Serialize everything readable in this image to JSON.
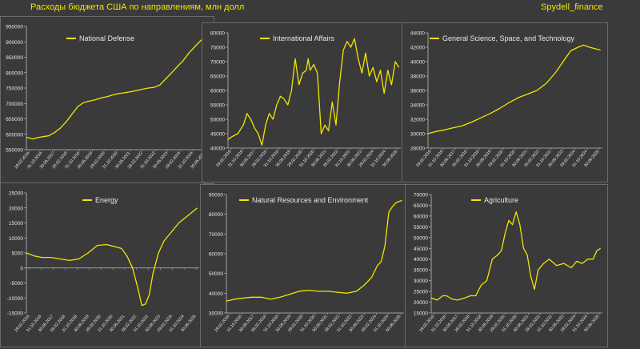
{
  "page": {
    "title": "Расходы бюджета США по направлениям, млн долл",
    "source": "Spydell_finance"
  },
  "colors": {
    "line": "#f2e600",
    "background": "#3a3a3a",
    "text": "#e8e8e8",
    "axis": "#bdbdbd"
  },
  "chart_data": [
    {
      "type": "line",
      "legend": "National Defense",
      "ylim": [
        550000,
        950000
      ],
      "yticks": [
        550000,
        600000,
        650000,
        700000,
        750000,
        800000,
        850000,
        900000,
        950000
      ],
      "ytick_labels": [
        "550000",
        "600000",
        "650000",
        "700000",
        "750000",
        "800000",
        "850000",
        "900000",
        "950000"
      ],
      "xtick_labels": [
        "29.02.2016",
        "31.10.2016",
        "30.06.2017",
        "28.02.2018",
        "31.10.2018",
        "30.06.2019",
        "29.02.2020",
        "31.10.2020",
        "30.06.2021",
        "28.02.2022",
        "31.10.2022",
        "30.06.2023",
        "29.02.2024",
        "31.10.2024",
        "30.06.2025"
      ],
      "x_range": [
        2016.17,
        2025.5
      ],
      "series": [
        {
          "x": [
            2016.17,
            2016.5,
            2016.8,
            2017.0,
            2017.3,
            2017.6,
            2017.9,
            2018.2,
            2018.5,
            2018.8,
            2019.1,
            2019.4,
            2019.7,
            2020.0,
            2020.3,
            2020.6,
            2020.9,
            2021.2,
            2021.5,
            2021.8,
            2022.1,
            2022.4,
            2022.7,
            2023.0,
            2023.3,
            2023.6,
            2023.9,
            2024.2,
            2024.5,
            2024.8,
            2025.1,
            2025.5
          ],
          "y": [
            590000,
            585000,
            590000,
            592000,
            595000,
            605000,
            620000,
            640000,
            665000,
            690000,
            703000,
            708000,
            712000,
            718000,
            722000,
            728000,
            732000,
            735000,
            738000,
            742000,
            746000,
            750000,
            752000,
            760000,
            780000,
            800000,
            820000,
            840000,
            865000,
            885000,
            905000,
            918000
          ]
        }
      ]
    },
    {
      "type": "line",
      "legend": "International Affairs",
      "ylim": [
        40000,
        80000
      ],
      "yticks": [
        40000,
        45000,
        50000,
        55000,
        60000,
        65000,
        70000,
        75000,
        80000
      ],
      "ytick_labels": [
        "40000",
        "45000",
        "50000",
        "55000",
        "60000",
        "65000",
        "70000",
        "75000",
        "80000"
      ],
      "xtick_labels": [
        "29.02.2016",
        "31.10.2016",
        "30.06.2017",
        "28.02.2018",
        "31.10.2018",
        "30.06.2019",
        "29.02.2020",
        "31.10.2020",
        "30.06.2021",
        "28.02.2022",
        "31.10.2022",
        "30.06.2023",
        "29.02.2024",
        "31.10.2024",
        "30.06.2025"
      ],
      "x_range": [
        2016.17,
        2025.5
      ],
      "series": [
        {
          "x": [
            2016.17,
            2016.4,
            2016.7,
            2017.0,
            2017.2,
            2017.4,
            2017.6,
            2017.8,
            2018.0,
            2018.2,
            2018.4,
            2018.6,
            2018.8,
            2019.0,
            2019.2,
            2019.4,
            2019.6,
            2019.8,
            2020.0,
            2020.2,
            2020.4,
            2020.5,
            2020.6,
            2020.8,
            2021.0,
            2021.2,
            2021.4,
            2021.6,
            2021.8,
            2022.0,
            2022.2,
            2022.4,
            2022.6,
            2022.8,
            2023.0,
            2023.2,
            2023.4,
            2023.6,
            2023.8,
            2024.0,
            2024.2,
            2024.4,
            2024.6,
            2024.8,
            2025.0,
            2025.2,
            2025.4
          ],
          "y": [
            43000,
            44000,
            45000,
            48000,
            52000,
            50000,
            47000,
            45000,
            41000,
            48000,
            52000,
            50000,
            55000,
            58000,
            57000,
            55000,
            60000,
            71000,
            62000,
            66000,
            67000,
            71000,
            67000,
            69000,
            66000,
            45000,
            48000,
            46000,
            56000,
            48000,
            63000,
            74000,
            77000,
            75000,
            78000,
            71000,
            66000,
            73000,
            65000,
            68000,
            63000,
            67000,
            59000,
            67000,
            62000,
            70000,
            68000
          ]
        }
      ]
    },
    {
      "type": "line",
      "legend": "General Science, Space, and Technology",
      "ylim": [
        28000,
        44000
      ],
      "yticks": [
        28000,
        30000,
        32000,
        34000,
        36000,
        38000,
        40000,
        42000,
        44000
      ],
      "ytick_labels": [
        "28000",
        "30000",
        "32000",
        "34000",
        "36000",
        "38000",
        "40000",
        "42000",
        "44000"
      ],
      "xtick_labels": [
        "29.02.2016",
        "31.10.2016",
        "30.06.2017",
        "28.02.2018",
        "31.10.2018",
        "30.06.2019",
        "29.02.2020",
        "31.10.2020",
        "30.06.2021",
        "28.02.2022",
        "31.10.2022",
        "30.06.2023",
        "29.02.2024",
        "31.10.2024",
        "30.06.2025"
      ],
      "x_range": [
        2016.17,
        2025.5
      ],
      "series": [
        {
          "x": [
            2016.17,
            2016.6,
            2017.0,
            2017.5,
            2018.0,
            2018.5,
            2019.0,
            2019.5,
            2020.0,
            2020.5,
            2021.0,
            2021.5,
            2022.0,
            2022.5,
            2023.0,
            2023.4,
            2023.8,
            2024.2,
            2024.5,
            2024.8,
            2025.1,
            2025.4
          ],
          "y": [
            30000,
            30300,
            30500,
            30800,
            31100,
            31600,
            32200,
            32800,
            33500,
            34300,
            35000,
            35500,
            36000,
            37000,
            38500,
            40000,
            41500,
            42000,
            42300,
            42000,
            41800,
            41600
          ]
        }
      ]
    },
    {
      "type": "line",
      "legend": "Energy",
      "ylim": [
        -15000,
        25000
      ],
      "yticks": [
        -15000,
        -10000,
        -5000,
        0,
        5000,
        10000,
        15000,
        20000,
        25000
      ],
      "ytick_labels": [
        "-15000",
        "-10000",
        "-5000",
        "0",
        "5000",
        "10000",
        "15000",
        "20000",
        "25000"
      ],
      "xtick_labels": [
        "29.02.2016",
        "31.10.2016",
        "30.06.2017",
        "28.02.2018",
        "31.10.2018",
        "30.06.2019",
        "29.02.2020",
        "31.10.2020",
        "30.06.2021",
        "28.02.2022",
        "31.10.2022",
        "30.06.2023",
        "29.02.2024",
        "31.10.2024",
        "30.06.2025"
      ],
      "x_range": [
        2016.17,
        2025.5
      ],
      "series": [
        {
          "x": [
            2016.17,
            2016.6,
            2017.0,
            2017.5,
            2018.0,
            2018.5,
            2019.0,
            2019.5,
            2020.0,
            2020.5,
            2021.0,
            2021.3,
            2021.6,
            2021.9,
            2022.2,
            2022.4,
            2022.6,
            2022.8,
            2023.0,
            2023.3,
            2023.6,
            2024.0,
            2024.4,
            2024.8,
            2025.1,
            2025.4
          ],
          "y": [
            5000,
            4000,
            3500,
            3500,
            3000,
            2500,
            3000,
            5000,
            7500,
            7800,
            7000,
            6500,
            4000,
            0,
            -7000,
            -12500,
            -12000,
            -9000,
            -2000,
            5000,
            9000,
            12000,
            15000,
            17000,
            18500,
            20000
          ]
        }
      ]
    },
    {
      "type": "line",
      "legend": "Natural Resources and Environment",
      "ylim": [
        30000,
        90000
      ],
      "yticks": [
        30000,
        40000,
        50000,
        60000,
        70000,
        80000,
        90000
      ],
      "ytick_labels": [
        "30000",
        "40000",
        "50000",
        "60000",
        "70000",
        "80000",
        "90000"
      ],
      "xtick_labels": [
        "29.02.2016",
        "31.10.2016",
        "30.06.2017",
        "28.02.2018",
        "31.10.2018",
        "30.06.2019",
        "29.02.2020",
        "31.10.2020",
        "30.06.2021",
        "28.02.2022",
        "31.10.2022",
        "30.06.2023",
        "29.02.2024",
        "31.10.2024",
        "30.06.2025"
      ],
      "x_range": [
        2016.17,
        2025.5
      ],
      "series": [
        {
          "x": [
            2016.17,
            2016.6,
            2017.0,
            2017.5,
            2018.0,
            2018.5,
            2019.0,
            2019.5,
            2020.0,
            2020.5,
            2021.0,
            2021.5,
            2022.0,
            2022.5,
            2023.0,
            2023.4,
            2023.8,
            2024.1,
            2024.3,
            2024.5,
            2024.7,
            2024.9,
            2025.1,
            2025.4
          ],
          "y": [
            36000,
            37000,
            37500,
            38000,
            38000,
            37000,
            38000,
            39500,
            41000,
            41500,
            41000,
            41000,
            40500,
            40000,
            41000,
            44000,
            48000,
            54000,
            56000,
            64000,
            81000,
            84000,
            86000,
            87000
          ]
        }
      ]
    },
    {
      "type": "line",
      "legend": "Agriculture",
      "ylim": [
        15000,
        70000
      ],
      "yticks": [
        15000,
        20000,
        25000,
        30000,
        35000,
        40000,
        45000,
        50000,
        55000,
        60000,
        65000,
        70000
      ],
      "ytick_labels": [
        "15000",
        "20000",
        "25000",
        "30000",
        "35000",
        "40000",
        "45000",
        "50000",
        "55000",
        "60000",
        "65000",
        "70000"
      ],
      "xtick_labels": [
        "29.02.2016",
        "31.10.2016",
        "30.06.2017",
        "28.02.2018",
        "31.10.2018",
        "30.06.2019",
        "29.02.2020",
        "31.10.2020",
        "30.06.2021",
        "28.02.2022",
        "31.10.2022",
        "30.06.2023",
        "29.02.2024",
        "31.10.2024",
        "30.06.2025"
      ],
      "x_range": [
        2016.17,
        2025.5
      ],
      "series": [
        {
          "x": [
            2016.17,
            2016.5,
            2016.8,
            2017.0,
            2017.3,
            2017.6,
            2018.0,
            2018.3,
            2018.6,
            2018.9,
            2019.2,
            2019.5,
            2019.8,
            2020.0,
            2020.2,
            2020.4,
            2020.6,
            2020.8,
            2021.0,
            2021.2,
            2021.4,
            2021.6,
            2021.8,
            2022.0,
            2022.3,
            2022.6,
            2023.0,
            2023.4,
            2023.8,
            2024.1,
            2024.4,
            2024.7,
            2025.0,
            2025.2,
            2025.4
          ],
          "y": [
            22000,
            21000,
            23000,
            23000,
            21500,
            21000,
            22000,
            23000,
            23000,
            28000,
            30000,
            40000,
            42000,
            44000,
            52000,
            58000,
            56000,
            62000,
            56000,
            45000,
            42000,
            32000,
            26000,
            35000,
            38000,
            40000,
            37000,
            38000,
            36000,
            39000,
            38000,
            40000,
            40000,
            44000,
            45000
          ]
        }
      ]
    }
  ]
}
